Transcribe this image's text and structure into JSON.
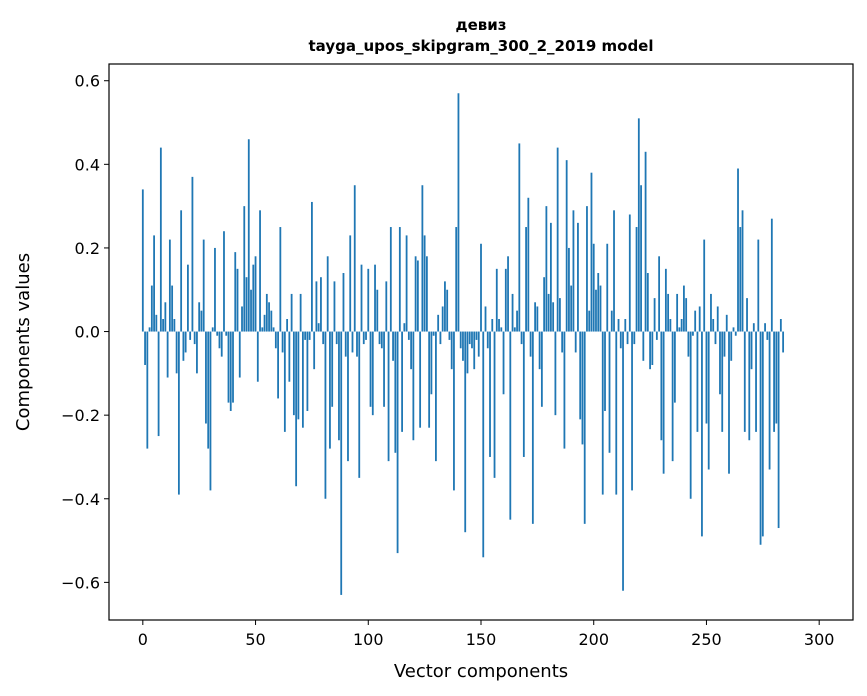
{
  "chart_data": {
    "type": "bar",
    "title_lines": [
      "девиз",
      "tayga_upos_skipgram_300_2_2019 model"
    ],
    "xlabel": "Vector components",
    "ylabel": "Components values",
    "xlim": [
      -15,
      315
    ],
    "ylim": [
      -0.69,
      0.64
    ],
    "x_ticks": [
      0,
      50,
      100,
      150,
      200,
      250,
      300
    ],
    "y_ticks": [
      -0.6,
      -0.4,
      -0.2,
      0.0,
      0.2,
      0.4,
      0.6
    ],
    "y_tick_labels": [
      "−0.6",
      "−0.4",
      "−0.2",
      "0.0",
      "0.2",
      "0.4",
      "0.6"
    ],
    "bar_color": "#1f77b4",
    "values": [
      0.34,
      -0.08,
      -0.28,
      0.01,
      0.11,
      0.23,
      0.04,
      -0.25,
      0.44,
      0.03,
      0.07,
      -0.11,
      0.22,
      0.11,
      0.03,
      -0.1,
      -0.39,
      0.29,
      -0.07,
      -0.05,
      0.16,
      -0.02,
      0.37,
      -0.03,
      -0.1,
      0.07,
      0.05,
      0.22,
      -0.22,
      -0.28,
      -0.38,
      0.01,
      0.2,
      -0.01,
      -0.04,
      -0.06,
      0.24,
      -0.01,
      -0.17,
      -0.19,
      -0.17,
      0.19,
      0.15,
      -0.11,
      0.06,
      0.3,
      0.13,
      0.46,
      0.1,
      0.16,
      0.18,
      -0.12,
      0.29,
      0.01,
      0.04,
      0.09,
      0.07,
      0.05,
      0.01,
      -0.04,
      -0.16,
      0.25,
      -0.05,
      -0.24,
      0.03,
      -0.12,
      0.09,
      -0.2,
      -0.37,
      -0.21,
      0.09,
      -0.23,
      -0.02,
      -0.19,
      -0.02,
      0.31,
      -0.09,
      0.12,
      0.02,
      0.13,
      -0.03,
      -0.4,
      0.18,
      -0.28,
      -0.18,
      0.12,
      -0.03,
      -0.26,
      -0.63,
      0.14,
      -0.06,
      -0.31,
      0.23,
      -0.05,
      0.35,
      -0.06,
      -0.35,
      0.16,
      -0.03,
      -0.02,
      0.15,
      -0.18,
      -0.2,
      0.16,
      0.1,
      -0.03,
      -0.04,
      -0.18,
      0.12,
      -0.31,
      0.25,
      -0.07,
      -0.29,
      -0.53,
      0.25,
      -0.24,
      0.02,
      0.23,
      -0.02,
      -0.09,
      -0.26,
      0.18,
      0.17,
      -0.23,
      0.35,
      0.23,
      0.18,
      -0.23,
      -0.15,
      -0.01,
      -0.31,
      0.04,
      -0.03,
      0.06,
      0.12,
      0.1,
      -0.02,
      -0.09,
      -0.38,
      0.25,
      0.57,
      -0.04,
      -0.07,
      -0.48,
      -0.1,
      -0.03,
      -0.04,
      -0.09,
      -0.02,
      -0.06,
      0.21,
      -0.54,
      0.06,
      -0.04,
      -0.3,
      0.03,
      -0.35,
      0.15,
      0.03,
      0.01,
      -0.15,
      0.15,
      0.18,
      -0.45,
      0.09,
      0.01,
      0.05,
      0.45,
      -0.03,
      -0.3,
      0.25,
      0.32,
      -0.06,
      -0.46,
      0.07,
      0.06,
      -0.09,
      -0.18,
      0.13,
      0.3,
      0.09,
      0.26,
      0.07,
      -0.2,
      0.44,
      0.08,
      -0.05,
      -0.28,
      0.41,
      0.2,
      0.11,
      0.29,
      -0.05,
      0.26,
      -0.21,
      -0.27,
      -0.46,
      0.3,
      0.05,
      0.38,
      0.21,
      0.1,
      0.14,
      0.11,
      -0.39,
      -0.19,
      0.21,
      -0.29,
      0.05,
      0.29,
      -0.39,
      0.03,
      -0.04,
      -0.62,
      0.03,
      -0.03,
      0.28,
      -0.38,
      -0.03,
      0.25,
      0.51,
      0.35,
      -0.07,
      0.43,
      0.14,
      -0.09,
      -0.08,
      0.08,
      -0.02,
      0.18,
      -0.26,
      -0.34,
      0.15,
      0.09,
      0.03,
      -0.31,
      -0.17,
      0.09,
      0.01,
      0.03,
      0.11,
      0.08,
      -0.06,
      -0.4,
      -0.01,
      0.05,
      -0.24,
      0.06,
      -0.49,
      0.22,
      -0.22,
      -0.33,
      0.09,
      0.03,
      -0.03,
      0.06,
      -0.15,
      -0.24,
      -0.06,
      0.04,
      -0.34,
      -0.07,
      0.01,
      -0.01,
      0.39,
      0.25,
      0.29,
      -0.24,
      0.08,
      -0.26,
      -0.09,
      0.02,
      -0.24,
      0.22,
      -0.51,
      -0.49,
      0.02,
      -0.02,
      -0.33,
      0.27,
      -0.24,
      -0.22,
      -0.47,
      0.03,
      -0.05
    ]
  }
}
